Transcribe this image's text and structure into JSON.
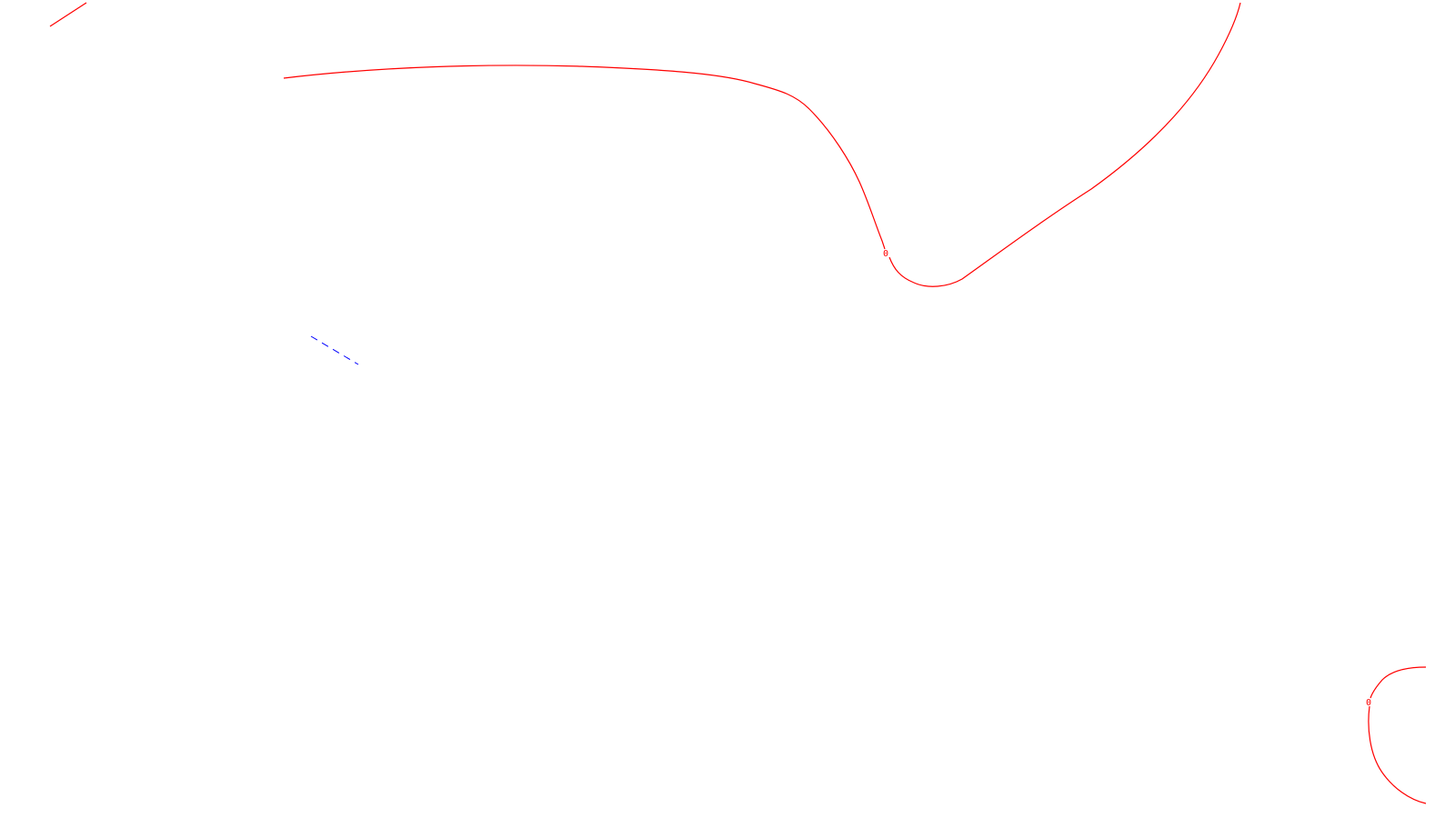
{
  "colors": {
    "background": "#ffffff",
    "contour_line": "#ff0000",
    "guide_line": "#0000ff"
  },
  "contour_labels": [
    "0",
    "0"
  ]
}
